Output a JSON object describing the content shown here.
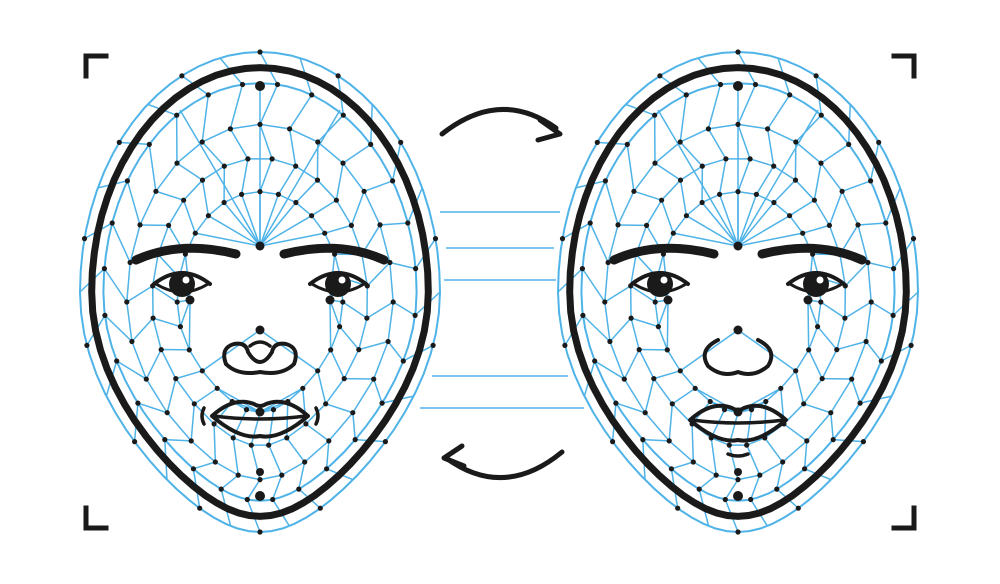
{
  "illustration": {
    "kind": "face-mesh-swap",
    "colors": {
      "ink": "#1a1a1a",
      "mesh": "#4fb3e8",
      "node": "#1a1a1a",
      "background": "#ffffff"
    },
    "faces": [
      {
        "name": "source-face",
        "nose": "wide",
        "lips": "full"
      },
      {
        "name": "target-face",
        "nose": "round",
        "lips": "full-with-chin-crease"
      }
    ],
    "icons": [
      "corner-bracket-icon",
      "swap-arrow-top-icon",
      "swap-arrow-bottom-icon"
    ]
  }
}
